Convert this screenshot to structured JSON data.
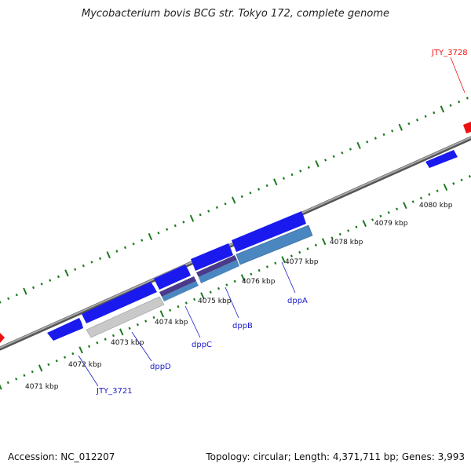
{
  "title": "Mycobacterium bovis BCG str. Tokyo 172, complete genome",
  "footer": {
    "accession": "Accession: NC_012207",
    "stats": "Topology: circular; Length: 4,371,711 bp; Genes: 3,993"
  },
  "colors": {
    "forward_gene": "#1a1aee",
    "highlight_gene": "#ee1111",
    "backbone": "#7a7a7a",
    "ticks": "#1e7a1e",
    "label_blue": "#1a1acc",
    "label_red": "#ee1111",
    "operon_blue": "#4a86c0",
    "operon_grey": "#c9c9c9",
    "operon_purple": "#4a3a8a"
  },
  "scale": {
    "tick_labels": [
      "4071 kbp",
      "4072 kbp",
      "4073 kbp",
      "4074 kbp",
      "4075 kbp",
      "4076 kbp",
      "4077 kbp",
      "4078 kbp",
      "4079 kbp",
      "4080 kbp"
    ]
  },
  "gene_labels": [
    {
      "text": "JTY_3721",
      "color": "blue"
    },
    {
      "text": "dppD",
      "color": "blue"
    },
    {
      "text": "dppC",
      "color": "blue"
    },
    {
      "text": "dppB",
      "color": "blue"
    },
    {
      "text": "dppA",
      "color": "blue"
    },
    {
      "text": "JTY_3728",
      "color": "red"
    }
  ]
}
